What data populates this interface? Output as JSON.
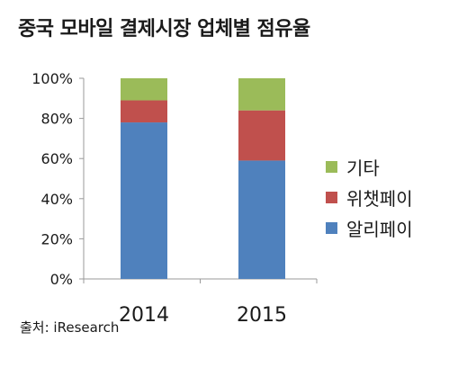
{
  "title": "중국 모바일 결제시장 업체별 점유율",
  "source": "출처: iResearch",
  "colors": {
    "axis": "#9a9a9a",
    "alipay": "#4f81bd",
    "wechatpay": "#c0504d",
    "other": "#9bbb59"
  },
  "chart_data": {
    "type": "bar",
    "stacked": true,
    "categories": [
      "2014",
      "2015"
    ],
    "series": [
      {
        "name": "알리페이",
        "color": "#4f81bd",
        "values": [
          78,
          59
        ]
      },
      {
        "name": "위챗페이",
        "color": "#c0504d",
        "values": [
          11,
          25
        ]
      },
      {
        "name": "기타",
        "color": "#9bbb59",
        "values": [
          11,
          16
        ]
      }
    ],
    "ylim": [
      0,
      100
    ],
    "y_ticks": [
      "0%",
      "20%",
      "40%",
      "60%",
      "80%",
      "100%"
    ],
    "grid": false,
    "legend_position": "right",
    "legend_order": [
      "기타",
      "위챗페이",
      "알리페이"
    ]
  }
}
